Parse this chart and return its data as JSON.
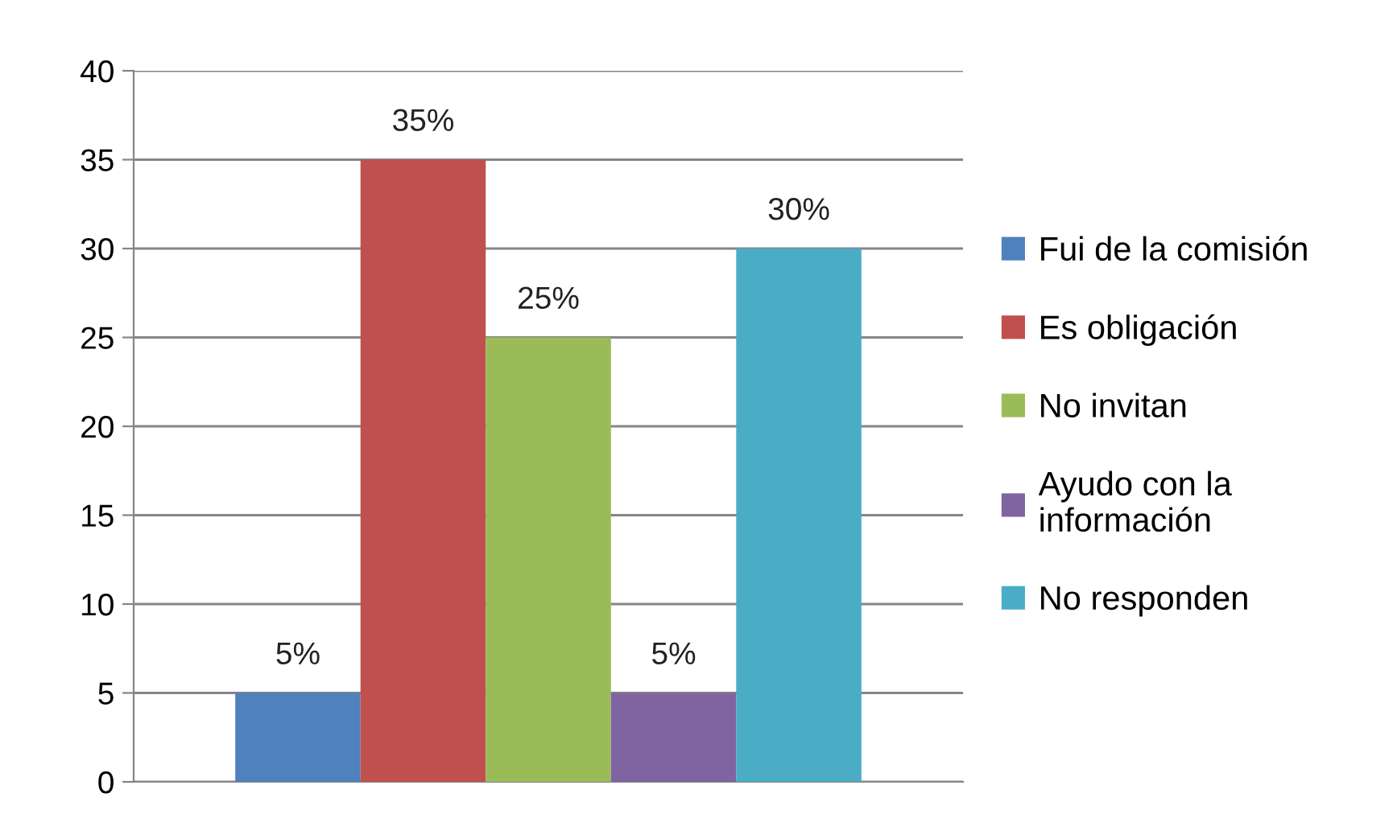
{
  "chart_data": {
    "type": "bar",
    "categories": [
      null
    ],
    "series": [
      {
        "name": "Fui de la comisión",
        "color": "#4f81bd",
        "values": [
          5
        ],
        "value_labels": [
          "5%"
        ]
      },
      {
        "name": "Es obligación",
        "color": "#c0504d",
        "values": [
          35
        ],
        "value_labels": [
          "35%"
        ]
      },
      {
        "name": "No invitan",
        "color": "#9bbb59",
        "values": [
          25
        ],
        "value_labels": [
          "25%"
        ]
      },
      {
        "name": "Ayudo con la información",
        "color": "#8064a2",
        "values": [
          5
        ],
        "value_labels": [
          "5%"
        ]
      },
      {
        "name": "No responden",
        "color": "#4bacc6",
        "values": [
          30
        ],
        "value_labels": [
          "30%"
        ]
      }
    ],
    "ylim": [
      0,
      40
    ],
    "yticks": [
      0,
      5,
      10,
      15,
      20,
      25,
      30,
      35,
      40
    ],
    "grid": "y",
    "legend": "right"
  }
}
